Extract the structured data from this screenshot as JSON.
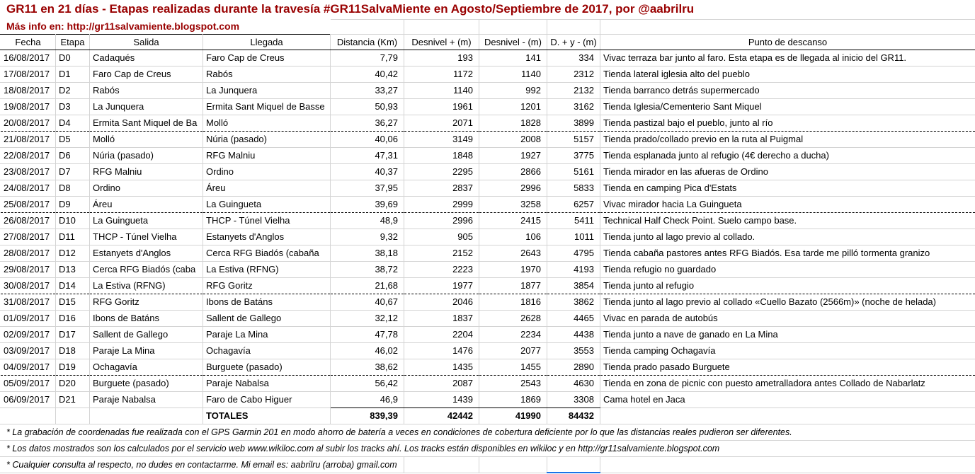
{
  "title": "GR11 en 21 días - Etapas realizadas durante la travesía #GR11SalvaMiente en Agosto/Septiembre de 2017, por @aabrilru",
  "subtitle": "Más info en: http://gr11salvamiente.blogspot.com",
  "columns": [
    "Fecha",
    "Etapa",
    "Salida",
    "Llegada",
    "Distancia (Km)",
    "Desnivel + (m)",
    "Desnivel - (m)",
    "D. + y - (m)",
    "Punto de descanso"
  ],
  "rows": [
    {
      "fecha": "16/08/2017",
      "etapa": "D0",
      "salida": "Cadaqués",
      "llegada": "Faro Cap de Creus",
      "distancia": "7,79",
      "desnivel_pos": "193",
      "desnivel_neg": "141",
      "desnivel_total": "334",
      "punto": "Vivac terraza bar junto al faro. Esta etapa es de llegada al inicio del GR11.",
      "page_break_after": false
    },
    {
      "fecha": "17/08/2017",
      "etapa": "D1",
      "salida": "Faro Cap de Creus",
      "llegada": "Rabós",
      "distancia": "40,42",
      "desnivel_pos": "1172",
      "desnivel_neg": "1140",
      "desnivel_total": "2312",
      "punto": "Tienda lateral iglesia alto del pueblo",
      "page_break_after": false
    },
    {
      "fecha": "18/08/2017",
      "etapa": "D2",
      "salida": "Rabós",
      "llegada": "La Junquera",
      "distancia": "33,27",
      "desnivel_pos": "1140",
      "desnivel_neg": "992",
      "desnivel_total": "2132",
      "punto": "Tienda barranco detrás supermercado",
      "page_break_after": false
    },
    {
      "fecha": "19/08/2017",
      "etapa": "D3",
      "salida": "La Junquera",
      "llegada": "Ermita Sant Miquel de Basse",
      "distancia": "50,93",
      "desnivel_pos": "1961",
      "desnivel_neg": "1201",
      "desnivel_total": "3162",
      "punto": "Tienda Iglesia/Cementerio Sant Miquel",
      "page_break_after": false
    },
    {
      "fecha": "20/08/2017",
      "etapa": "D4",
      "salida": "Ermita Sant Miquel de Ba",
      "llegada": "Molló",
      "distancia": "36,27",
      "desnivel_pos": "2071",
      "desnivel_neg": "1828",
      "desnivel_total": "3899",
      "punto": "Tienda pastizal bajo el pueblo, junto al río",
      "page_break_after": true
    },
    {
      "fecha": "21/08/2017",
      "etapa": "D5",
      "salida": "Molló",
      "llegada": "Núria (pasado)",
      "distancia": "40,06",
      "desnivel_pos": "3149",
      "desnivel_neg": "2008",
      "desnivel_total": "5157",
      "punto": "Tienda prado/collado previo en la ruta al Puigmal",
      "page_break_after": false
    },
    {
      "fecha": "22/08/2017",
      "etapa": "D6",
      "salida": "Núria (pasado)",
      "llegada": "RFG Malniu",
      "distancia": "47,31",
      "desnivel_pos": "1848",
      "desnivel_neg": "1927",
      "desnivel_total": "3775",
      "punto": "Tienda esplanada junto al refugio (4€ derecho a ducha)",
      "page_break_after": false
    },
    {
      "fecha": "23/08/2017",
      "etapa": "D7",
      "salida": "RFG Malniu",
      "llegada": "Ordino",
      "distancia": "40,37",
      "desnivel_pos": "2295",
      "desnivel_neg": "2866",
      "desnivel_total": "5161",
      "punto": "Tienda mirador en las afueras de Ordino",
      "page_break_after": false
    },
    {
      "fecha": "24/08/2017",
      "etapa": "D8",
      "salida": "Ordino",
      "llegada": "Áreu",
      "distancia": "37,95",
      "desnivel_pos": "2837",
      "desnivel_neg": "2996",
      "desnivel_total": "5833",
      "punto": "Tienda en camping Pica d'Estats",
      "page_break_after": false
    },
    {
      "fecha": "25/08/2017",
      "etapa": "D9",
      "salida": "Áreu",
      "llegada": "La Guingueta",
      "distancia": "39,69",
      "desnivel_pos": "2999",
      "desnivel_neg": "3258",
      "desnivel_total": "6257",
      "punto": "Vivac mirador hacia La Guingueta",
      "page_break_after": true
    },
    {
      "fecha": "26/08/2017",
      "etapa": "D10",
      "salida": "La Guingueta",
      "llegada": "THCP - Túnel Vielha",
      "distancia": "48,9",
      "desnivel_pos": "2996",
      "desnivel_neg": "2415",
      "desnivel_total": "5411",
      "punto": "Technical Half Check Point. Suelo campo base.",
      "page_break_after": false
    },
    {
      "fecha": "27/08/2017",
      "etapa": "D11",
      "salida": "THCP - Túnel Vielha",
      "llegada": "Estanyets d'Anglos",
      "distancia": "9,32",
      "desnivel_pos": "905",
      "desnivel_neg": "106",
      "desnivel_total": "1011",
      "punto": "Tienda junto al lago previo al collado.",
      "page_break_after": false
    },
    {
      "fecha": "28/08/2017",
      "etapa": "D12",
      "salida": "Estanyets d'Anglos",
      "llegada": "Cerca RFG Biadós (cabaña",
      "distancia": "38,18",
      "desnivel_pos": "2152",
      "desnivel_neg": "2643",
      "desnivel_total": "4795",
      "punto": "Tienda cabaña pastores antes RFG Biadós. Esa tarde me pilló tormenta granizo",
      "page_break_after": false
    },
    {
      "fecha": "29/08/2017",
      "etapa": "D13",
      "salida": "Cerca RFG Biadós (caba",
      "llegada": "La Estiva (RFNG)",
      "distancia": "38,72",
      "desnivel_pos": "2223",
      "desnivel_neg": "1970",
      "desnivel_total": "4193",
      "punto": "Tienda refugio no guardado",
      "page_break_after": false
    },
    {
      "fecha": "30/08/2017",
      "etapa": "D14",
      "salida": "La Estiva (RFNG)",
      "llegada": "RFG Goritz",
      "distancia": "21,68",
      "desnivel_pos": "1977",
      "desnivel_neg": "1877",
      "desnivel_total": "3854",
      "punto": "Tienda junto al refugio",
      "page_break_after": true
    },
    {
      "fecha": "31/08/2017",
      "etapa": "D15",
      "salida": "RFG Goritz",
      "llegada": "Ibons de Batáns",
      "distancia": "40,67",
      "desnivel_pos": "2046",
      "desnivel_neg": "1816",
      "desnivel_total": "3862",
      "punto": "Tienda junto al lago previo al collado «Cuello Bazato (2566m)» (noche de helada)",
      "page_break_after": false
    },
    {
      "fecha": "01/09/2017",
      "etapa": "D16",
      "salida": "Ibons de Batáns",
      "llegada": "Sallent de Gallego",
      "distancia": "32,12",
      "desnivel_pos": "1837",
      "desnivel_neg": "2628",
      "desnivel_total": "4465",
      "punto": "Vivac en parada de autobús",
      "page_break_after": false
    },
    {
      "fecha": "02/09/2017",
      "etapa": "D17",
      "salida": "Sallent de Gallego",
      "llegada": "Paraje La Mina",
      "distancia": "47,78",
      "desnivel_pos": "2204",
      "desnivel_neg": "2234",
      "desnivel_total": "4438",
      "punto": "Tienda junto a nave de ganado en La Mina",
      "page_break_after": false
    },
    {
      "fecha": "03/09/2017",
      "etapa": "D18",
      "salida": "Paraje La Mina",
      "llegada": "Ochagavía",
      "distancia": "46,02",
      "desnivel_pos": "1476",
      "desnivel_neg": "2077",
      "desnivel_total": "3553",
      "punto": "Tienda camping Ochagavía",
      "page_break_after": false
    },
    {
      "fecha": "04/09/2017",
      "etapa": "D19",
      "salida": "Ochagavía",
      "llegada": "Burguete (pasado)",
      "distancia": "38,62",
      "desnivel_pos": "1435",
      "desnivel_neg": "1455",
      "desnivel_total": "2890",
      "punto": "Tienda prado pasado Burguete",
      "page_break_after": true
    },
    {
      "fecha": "05/09/2017",
      "etapa": "D20",
      "salida": "Burguete (pasado)",
      "llegada": "Paraje Nabalsa",
      "distancia": "56,42",
      "desnivel_pos": "2087",
      "desnivel_neg": "2543",
      "desnivel_total": "4630",
      "punto": "Tienda en zona de picnic con puesto ametralladora antes Collado de Nabarlatz",
      "page_break_after": false
    },
    {
      "fecha": "06/09/2017",
      "etapa": "D21",
      "salida": "Paraje Nabalsa",
      "llegada": "Faro de Cabo Higuer",
      "distancia": "46,9",
      "desnivel_pos": "1439",
      "desnivel_neg": "1869",
      "desnivel_total": "3308",
      "punto": "Cama hotel en Jaca",
      "page_break_after": false
    }
  ],
  "totals": {
    "label": "TOTALES",
    "distancia": "839,39",
    "desnivel_pos": "42442",
    "desnivel_neg": "41990",
    "desnivel_total": "84432"
  },
  "notes": [
    "* La grabación de coordenadas fue realizada con el GPS Garmin 201 en modo ahorro de batería a veces en condiciones de cobertura deficiente por lo que las distancias reales pudieron ser diferentes.",
    "* Los datos mostrados son los calculados por el servicio web www.wikiloc.com al subir los tracks ahí. Los tracks están disponibles en wikiloc y en http://gr11salvamiente.blogspot.com",
    "* Cualquier consulta al respecto, no dudes en contactarme. Mi email es: aabrilru (arroba) gmail.com"
  ],
  "colors": {
    "title_red": "#990000",
    "gridline": "#d4d4d4",
    "page_break_line": "#000000",
    "selection_blue": "#1a73e8"
  }
}
